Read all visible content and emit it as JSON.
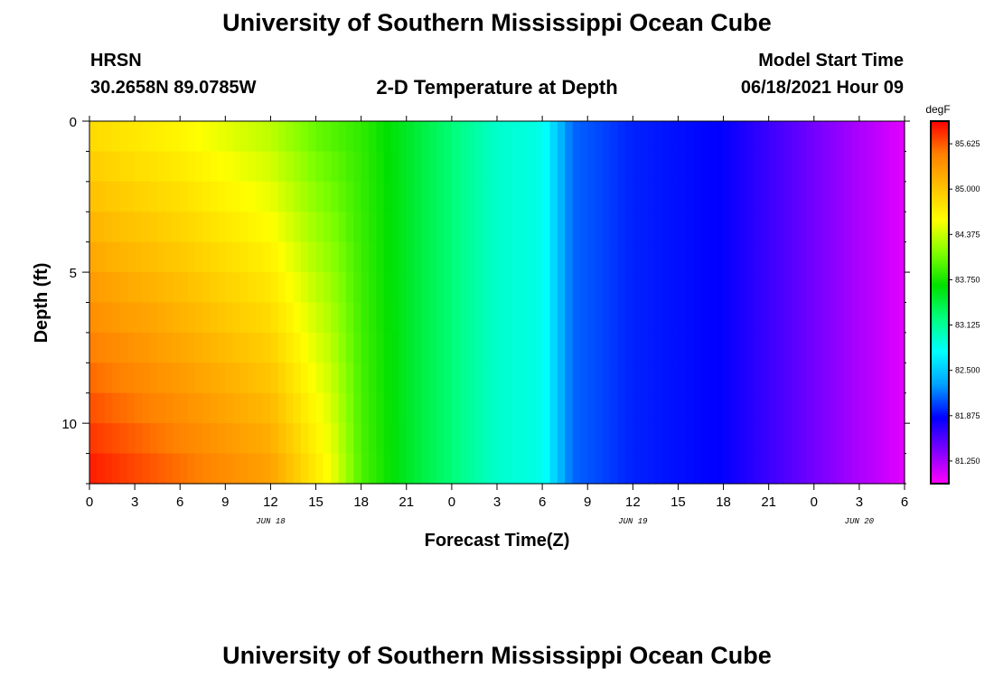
{
  "header": {
    "title_top": "University of Southern Mississippi Ocean Cube",
    "station": "HRSN",
    "coords": "30.2658N  89.0785W",
    "chart_title": "2-D Temperature at Depth",
    "start_label": "Model Start Time",
    "start_value": "06/18/2021 Hour 09",
    "title_bottom": "University of Southern Mississippi Ocean Cube"
  },
  "chart_data": {
    "type": "heatmap",
    "title": "2-D Temperature at Depth",
    "xlabel": "Forecast Time(Z)",
    "ylabel": "Depth (ft)",
    "x_ticks": [
      "0",
      "3",
      "6",
      "9",
      "12",
      "15",
      "18",
      "21",
      "0",
      "3",
      "6",
      "9",
      "12",
      "15",
      "18",
      "21",
      "0",
      "3",
      "6"
    ],
    "date_labels": [
      {
        "label": "JUN 18",
        "hour_index": 12
      },
      {
        "label": "JUN 19",
        "hour_index": 36
      },
      {
        "label": "JUN 20",
        "hour_index": 51
      }
    ],
    "x_range_hours": [
      0,
      54
    ],
    "y_ticks": [
      0,
      5,
      10
    ],
    "ylim": [
      0,
      12
    ],
    "colorbar": {
      "unit": "degF",
      "min": 81.0,
      "max": 86.0,
      "labels": [
        "85.625",
        "85.000",
        "84.375",
        "83.750",
        "83.125",
        "82.500",
        "81.875",
        "81.250"
      ],
      "colors": [
        "#ff00ff",
        "#8000ff",
        "#0000ff",
        "#00a0ff",
        "#00ffff",
        "#00ff80",
        "#00e000",
        "#80ff00",
        "#ffff00",
        "#ffc000",
        "#ff8000",
        "#ff0000"
      ]
    },
    "depth_levels_ft": [
      0,
      1,
      2,
      3,
      4,
      5,
      6,
      7,
      8,
      9,
      10,
      11
    ],
    "temperature_profile_surface_degF": [
      {
        "hour": 0,
        "value": 84.9
      },
      {
        "hour": 6,
        "value": 84.7
      },
      {
        "hour": 12,
        "value": 84.4
      },
      {
        "hour": 15,
        "value": 84.1
      },
      {
        "hour": 18,
        "value": 83.9
      },
      {
        "hour": 21,
        "value": 83.6
      },
      {
        "hour": 24,
        "value": 83.3
      },
      {
        "hour": 27,
        "value": 83.0
      },
      {
        "hour": 30,
        "value": 82.9
      },
      {
        "hour": 32,
        "value": 82.2
      },
      {
        "hour": 36,
        "value": 82.0
      },
      {
        "hour": 42,
        "value": 81.9
      },
      {
        "hour": 45,
        "value": 81.7
      },
      {
        "hour": 48,
        "value": 81.5
      },
      {
        "hour": 51,
        "value": 81.3
      },
      {
        "hour": 54,
        "value": 81.1
      }
    ],
    "temperature_profile_bottom_degF": [
      {
        "hour": 0,
        "value": 85.9
      },
      {
        "hour": 6,
        "value": 85.6
      },
      {
        "hour": 12,
        "value": 85.3
      },
      {
        "hour": 16,
        "value": 84.6
      },
      {
        "hour": 18,
        "value": 84.0
      },
      {
        "hour": 21,
        "value": 83.6
      },
      {
        "hour": 24,
        "value": 83.3
      },
      {
        "hour": 27,
        "value": 83.0
      },
      {
        "hour": 30,
        "value": 82.9
      },
      {
        "hour": 32,
        "value": 82.2
      },
      {
        "hour": 36,
        "value": 82.0
      },
      {
        "hour": 42,
        "value": 81.9
      },
      {
        "hour": 45,
        "value": 81.7
      },
      {
        "hour": 48,
        "value": 81.5
      },
      {
        "hour": 51,
        "value": 81.3
      },
      {
        "hour": 54,
        "value": 81.1
      }
    ]
  }
}
